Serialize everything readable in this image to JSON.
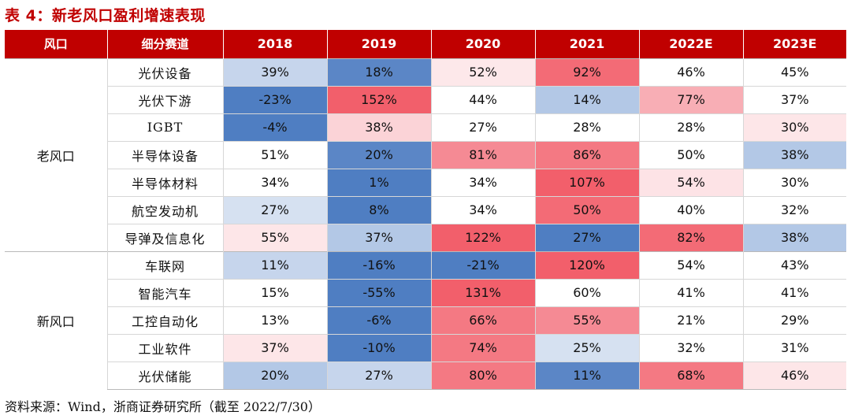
{
  "title": "表 4：新老风口盈利增速表现",
  "header": [
    "风口",
    "细分赛道",
    "2018",
    "2019",
    "2020",
    "2021",
    "2022E",
    "2023E"
  ],
  "groups": [
    {
      "name": "老风口",
      "rows": [
        {
          "sector": "光伏设备",
          "values": [
            "39%",
            "18%",
            "52%",
            "92%",
            "46%",
            "45%"
          ],
          "colors": [
            "#c6d5ec",
            "#5b86c6",
            "#fde8ea",
            "#f36b76",
            "#ffffff",
            "#ffffff"
          ]
        },
        {
          "sector": "光伏下游",
          "values": [
            "-23%",
            "152%",
            "44%",
            "14%",
            "77%",
            "37%"
          ],
          "colors": [
            "#4f7ec2",
            "#f25f6b",
            "#ffffff",
            "#b3c8e6",
            "#f8aeb5",
            "#ffffff"
          ]
        },
        {
          "sector": "IGBT",
          "values": [
            "-4%",
            "38%",
            "27%",
            "28%",
            "28%",
            "30%"
          ],
          "colors": [
            "#4f7ec2",
            "#fbd3d7",
            "#ffffff",
            "#ffffff",
            "#ffffff",
            "#fde6e8"
          ]
        },
        {
          "sector": "半导体设备",
          "values": [
            "51%",
            "20%",
            "81%",
            "86%",
            "50%",
            "38%"
          ],
          "colors": [
            "#ffffff",
            "#5b86c6",
            "#f58a94",
            "#f47983",
            "#ffffff",
            "#b3c8e6"
          ]
        },
        {
          "sector": "半导体材料",
          "values": [
            "34%",
            "1%",
            "34%",
            "107%",
            "54%",
            "30%"
          ],
          "colors": [
            "#ffffff",
            "#4f7ec2",
            "#ffffff",
            "#f25f6b",
            "#fde3e6",
            "#ffffff"
          ]
        },
        {
          "sector": "航空发动机",
          "values": [
            "27%",
            "8%",
            "34%",
            "50%",
            "40%",
            "32%"
          ],
          "colors": [
            "#d6e1f1",
            "#4f7ec2",
            "#ffffff",
            "#f36b76",
            "#ffffff",
            "#ffffff"
          ]
        },
        {
          "sector": "导弹及信息化",
          "values": [
            "55%",
            "37%",
            "122%",
            "27%",
            "82%",
            "38%"
          ],
          "colors": [
            "#fde6e8",
            "#b3c8e6",
            "#f25f6b",
            "#4f7ec2",
            "#f36b76",
            "#b3c8e6"
          ]
        }
      ]
    },
    {
      "name": "新风口",
      "rows": [
        {
          "sector": "车联网",
          "values": [
            "11%",
            "-16%",
            "-21%",
            "120%",
            "54%",
            "43%"
          ],
          "colors": [
            "#c6d5ec",
            "#4f7ec2",
            "#4f7ec2",
            "#f25f6b",
            "#ffffff",
            "#ffffff"
          ]
        },
        {
          "sector": "智能汽车",
          "values": [
            "15%",
            "-55%",
            "131%",
            "60%",
            "41%",
            "41%"
          ],
          "colors": [
            "#ffffff",
            "#4f7ec2",
            "#f25f6b",
            "#ffffff",
            "#ffffff",
            "#ffffff"
          ]
        },
        {
          "sector": "工控自动化",
          "values": [
            "13%",
            "-6%",
            "66%",
            "55%",
            "21%",
            "29%"
          ],
          "colors": [
            "#ffffff",
            "#4f7ec2",
            "#f47983",
            "#f58a94",
            "#ffffff",
            "#ffffff"
          ]
        },
        {
          "sector": "工业软件",
          "values": [
            "37%",
            "-10%",
            "74%",
            "25%",
            "32%",
            "31%"
          ],
          "colors": [
            "#fde6e8",
            "#4f7ec2",
            "#f47983",
            "#d6e1f1",
            "#ffffff",
            "#ffffff"
          ]
        },
        {
          "sector": "光伏储能",
          "values": [
            "20%",
            "27%",
            "80%",
            "11%",
            "68%",
            "46%"
          ],
          "colors": [
            "#b3c8e6",
            "#c6d5ec",
            "#f47983",
            "#5b86c6",
            "#f47983",
            "#fde6e8"
          ]
        }
      ]
    }
  ],
  "source": "资料来源：Wind，浙商证券研究所（截至 2022/7/30）"
}
